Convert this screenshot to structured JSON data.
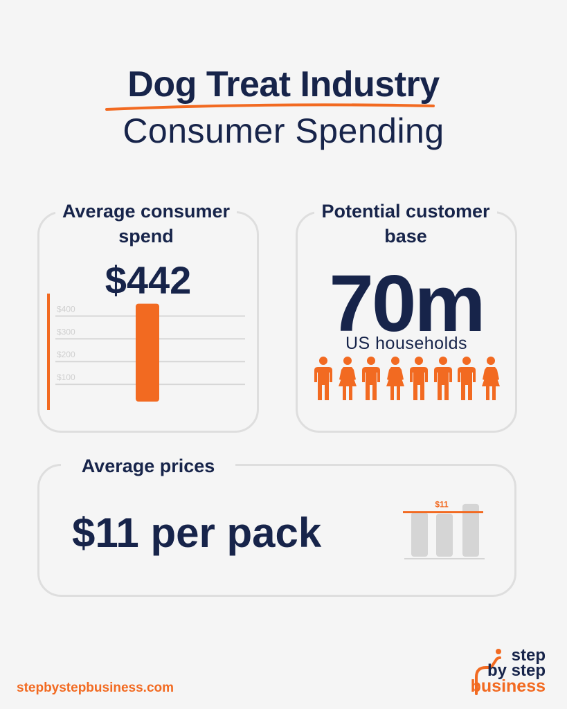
{
  "title": {
    "line1": "Dog Treat Industry",
    "line2": "Consumer Spending"
  },
  "cards": {
    "spend": {
      "label": "Average consumer spend",
      "value": "$442"
    },
    "customers": {
      "label": "Potential customer base",
      "value": "70m",
      "sublabel": "US households"
    },
    "prices": {
      "label": "Average prices",
      "value": "$11 per pack"
    }
  },
  "chart_data": [
    {
      "type": "bar",
      "categories": [
        ""
      ],
      "values": [
        442
      ],
      "ylim": [
        0,
        450
      ],
      "y_ticks": [
        "$100",
        "$200",
        "$300",
        "$400"
      ],
      "y_tick_values": [
        100,
        200,
        300,
        400
      ],
      "grid": true
    },
    {
      "type": "bar",
      "categories": [
        "",
        "",
        ""
      ],
      "values": [
        11,
        10.6,
        13
      ],
      "ylim": [
        0,
        14
      ],
      "reference_line": {
        "value": 11,
        "label": "$11"
      },
      "grid": false
    }
  ],
  "people_count": 8,
  "people_icons": [
    "man-icon",
    "woman-icon",
    "man-icon",
    "woman-icon",
    "man-icon",
    "man-icon",
    "man-icon",
    "woman-icon"
  ],
  "colors": {
    "accent": "#f26a21",
    "navy": "#17244a",
    "gray_bar": "#d5d5d5",
    "background": "#f5f5f5"
  },
  "footer": {
    "url": "stepbystepbusiness.com"
  },
  "logo": {
    "line1": "step",
    "line2": "by step",
    "line3": "business"
  }
}
